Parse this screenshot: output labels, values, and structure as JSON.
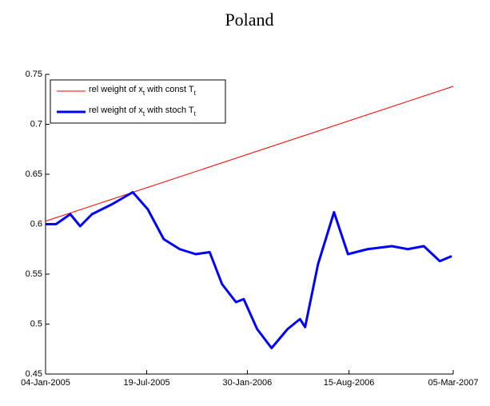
{
  "chart_data": {
    "type": "line",
    "title": "Poland",
    "series": [
      {
        "name": "rel weight of x_t with const T_t",
        "color": "#ff0000",
        "width": 1,
        "x": [
          "2005-01-04",
          "2007-03-05"
        ],
        "values": [
          0.603,
          0.738
        ]
      },
      {
        "name": "rel weight of x_t with stoch T_t",
        "color": "#0000ff",
        "width": 3,
        "x": [
          "2005-01-04",
          "2005-01-24",
          "2005-02-21",
          "2005-03-12",
          "2005-04-04",
          "2005-05-13",
          "2005-06-22",
          "2005-07-21",
          "2005-08-21",
          "2005-09-21",
          "2005-10-22",
          "2005-11-18",
          "2005-12-12",
          "2006-01-08",
          "2006-01-23",
          "2006-02-18",
          "2006-03-18",
          "2006-04-18",
          "2006-05-12",
          "2006-05-22",
          "2006-06-16",
          "2006-07-17",
          "2006-08-13",
          "2006-09-20",
          "2006-11-06",
          "2006-12-07",
          "2007-01-07",
          "2007-02-07",
          "2007-03-02"
        ],
        "values": [
          0.6,
          0.6,
          0.61,
          0.598,
          0.61,
          0.62,
          0.632,
          0.615,
          0.585,
          0.575,
          0.57,
          0.572,
          0.54,
          0.522,
          0.525,
          0.495,
          0.476,
          0.495,
          0.505,
          0.497,
          0.56,
          0.612,
          0.57,
          0.575,
          0.578,
          0.575,
          0.578,
          0.563,
          0.568
        ]
      }
    ],
    "xlim": [
      "2005-01-04",
      "2007-03-05"
    ],
    "xticks": [
      {
        "value": "2005-01-04",
        "label": "04-Jan-2005"
      },
      {
        "value": "2005-07-19",
        "label": "19-Jul-2005"
      },
      {
        "value": "2006-01-30",
        "label": "30-Jan-2006"
      },
      {
        "value": "2006-08-15",
        "label": "15-Aug-2006"
      },
      {
        "value": "2007-03-05",
        "label": "05-Mar-2007"
      }
    ],
    "ylim": [
      0.45,
      0.75
    ],
    "yticks": [
      0.45,
      0.5,
      0.55,
      0.6,
      0.65,
      0.7,
      0.75
    ],
    "legend": "upper left",
    "grid": false
  }
}
